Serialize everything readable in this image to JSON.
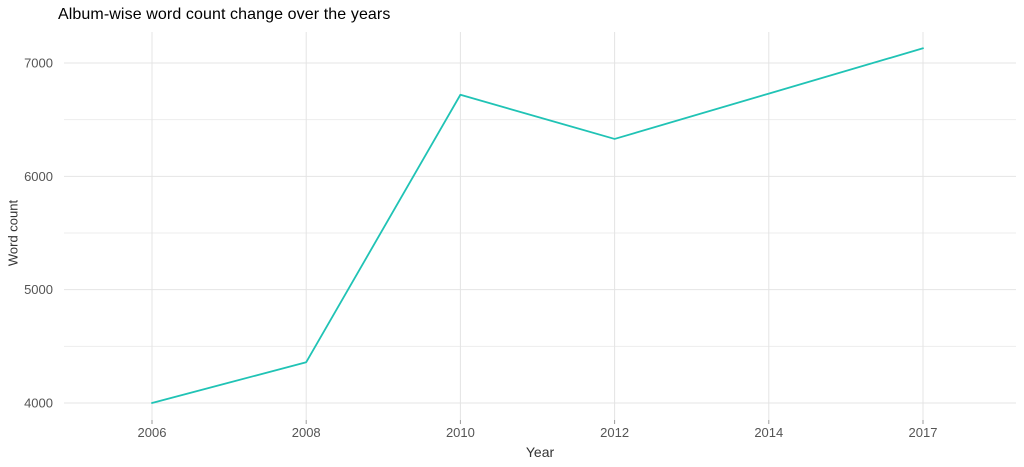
{
  "title": "Album-wise word count change over the years",
  "chart_data": {
    "type": "line",
    "title": "Album-wise word count change over the years",
    "xlabel": "Year",
    "ylabel": "Word count",
    "categories": [
      "2006",
      "2008",
      "2010",
      "2012",
      "2014",
      "2017"
    ],
    "series": [
      {
        "name": "Word count",
        "values": [
          4000,
          4360,
          6720,
          6330,
          6730,
          7130
        ]
      }
    ],
    "yticks": [
      4000,
      5000,
      6000,
      7000
    ],
    "minor_yticks": [
      4500,
      5500,
      6500
    ],
    "ylim": [
      3850,
      7280
    ],
    "x_axis_type": "categorical",
    "grid": "on",
    "legend": "none",
    "line_color": "#20c3b5",
    "major_grid_color": "#e4e4e4",
    "minor_grid_color": "#ededed",
    "tick_mark_color": "#9a9a9a",
    "tick_label_color": "#555555",
    "axis_title_color": "#333333",
    "background_color": "#ffffff"
  }
}
